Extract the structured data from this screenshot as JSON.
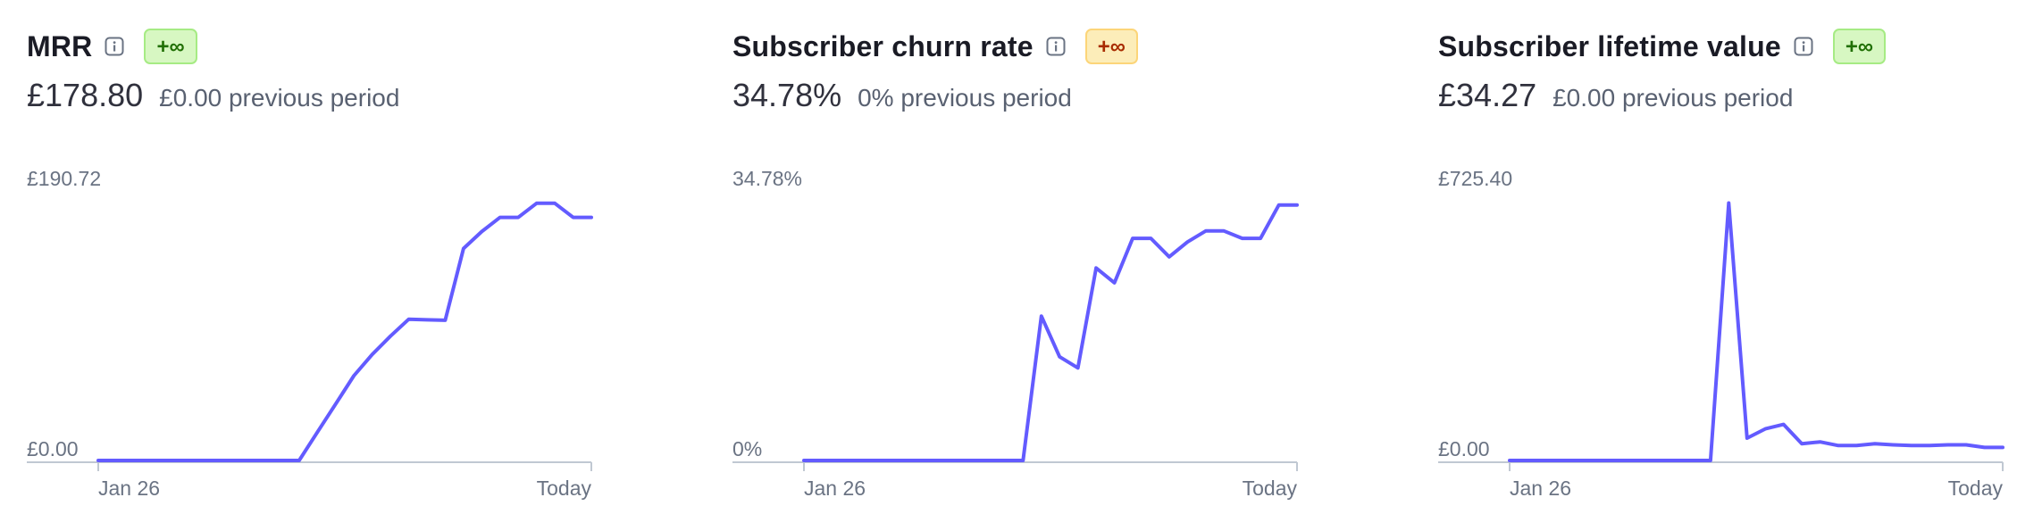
{
  "colors": {
    "line": "#635bff",
    "axis": "#c0c8d2",
    "label": "#6a7383"
  },
  "cards": [
    {
      "title": "MRR",
      "info_icon": "info-icon",
      "badge": "+∞",
      "badge_tone": "positive",
      "value": "£178.80",
      "previous": "£0.00 previous period",
      "chart_data": {
        "type": "line",
        "series": [
          {
            "values": [
              0,
              0,
              0,
              0,
              0,
              0,
              0,
              0,
              0,
              0,
              0,
              0,
              20,
              40,
              60,
              75,
              88,
              100,
              99.5,
              99.2,
              150,
              162,
              172,
              172,
              182,
              182,
              172,
              172
            ]
          }
        ],
        "xlabels": [
          "Jan 26",
          "Today"
        ],
        "ylabels": [
          "£0.00",
          "£190.72"
        ],
        "ylim": [
          0,
          190.72
        ],
        "grid": false
      }
    },
    {
      "title": "Subscriber churn rate",
      "info_icon": "info-icon",
      "badge": "+∞",
      "badge_tone": "negative",
      "value": "34.78%",
      "previous": "0% previous period",
      "chart_data": {
        "type": "line",
        "series": [
          {
            "values": [
              0,
              0,
              0,
              0,
              0,
              0,
              0,
              0,
              0,
              0,
              0,
              0,
              0,
              19.5,
              14,
              12.5,
              26,
              24,
              30,
              30,
              27.5,
              29.5,
              31,
              31,
              30,
              30,
              34.5,
              34.5
            ]
          }
        ],
        "xlabels": [
          "Jan 26",
          "Today"
        ],
        "ylabels": [
          "0%",
          "34.78%"
        ],
        "ylim": [
          0,
          36.4
        ],
        "grid": false
      }
    },
    {
      "title": "Subscriber lifetime value",
      "info_icon": "info-icon",
      "badge": "+∞",
      "badge_tone": "positive",
      "value": "£34.27",
      "previous": "£0.00 previous period",
      "chart_data": {
        "type": "line",
        "series": [
          {
            "values": [
              0,
              0,
              0,
              0,
              0,
              0,
              0,
              0,
              0,
              0,
              0,
              0,
              693,
              60,
              85,
              97,
              45,
              50,
              40,
              40,
              45,
              42,
              40,
              40,
              42,
              42,
              35,
              35
            ]
          }
        ],
        "xlabels": [
          "Jan 26",
          "Today"
        ],
        "ylabels": [
          "£0.00",
          "£725.40"
        ],
        "ylim": [
          0,
          725.4
        ],
        "grid": false
      }
    }
  ]
}
